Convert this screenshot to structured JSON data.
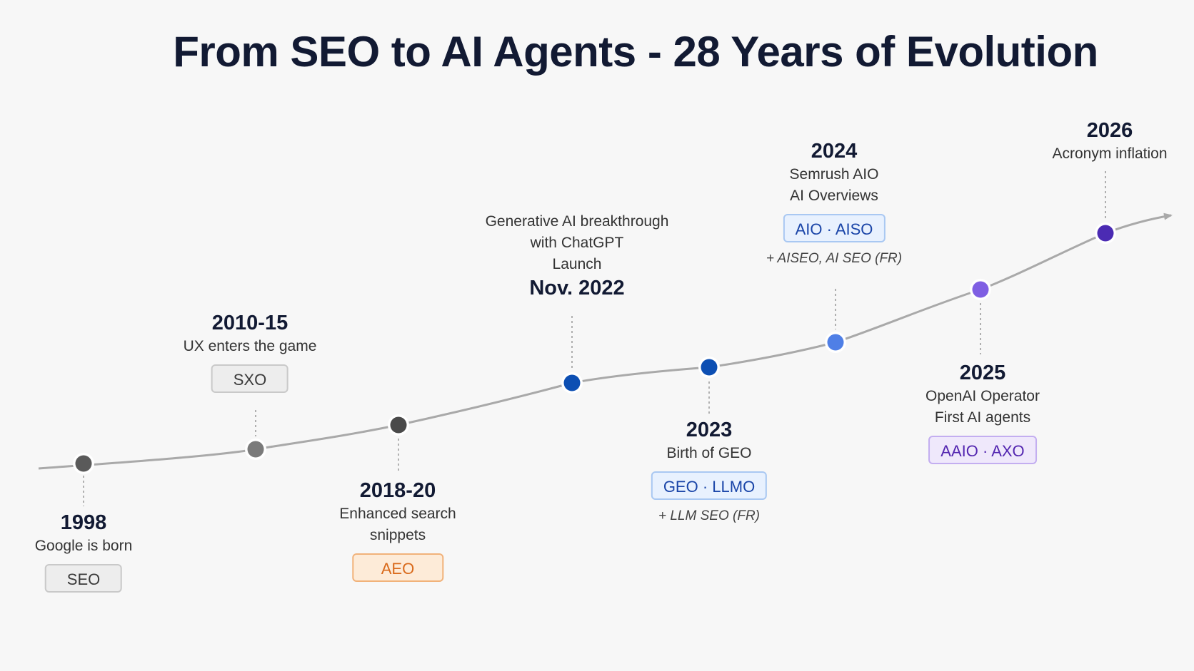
{
  "title": "From SEO to AI Agents - 28 Years of Evolution",
  "milestones": [
    {
      "year": "1998",
      "desc": [
        "Google is born"
      ],
      "badge": "SEO",
      "color": "#5a5a5a"
    },
    {
      "year": "2010-15",
      "desc": [
        "UX enters the game"
      ],
      "badge": "SXO",
      "color": "#7a7a7a"
    },
    {
      "year": "2018-20",
      "desc": [
        "Enhanced search",
        "snippets"
      ],
      "badge": "AEO",
      "color": "#4a4a4a"
    },
    {
      "year": "Nov. 2022",
      "desc": [
        "Generative AI breakthrough",
        "with ChatGPT",
        "Launch"
      ],
      "color": "#0d4fb3"
    },
    {
      "year": "2023",
      "desc": [
        "Birth of GEO"
      ],
      "badge": "GEO · LLMO",
      "note": "+ LLM SEO (FR)",
      "color": "#0d4fb3"
    },
    {
      "year": "2024",
      "desc": [
        "Semrush AIO",
        "AI Overviews"
      ],
      "badge": "AIO · AISO",
      "note": "+ AISEO, AI SEO (FR)",
      "color": "#4f7fe6"
    },
    {
      "year": "2025",
      "desc": [
        "OpenAI Operator",
        "First AI agents"
      ],
      "badge": "AAIO · AXO",
      "color": "#7f5fe3"
    },
    {
      "year": "2026",
      "desc": [
        "Acronym inflation"
      ],
      "color": "#4b2bb3"
    }
  ],
  "colors": {
    "line": "#a9a9a9",
    "title": "#121a33"
  }
}
